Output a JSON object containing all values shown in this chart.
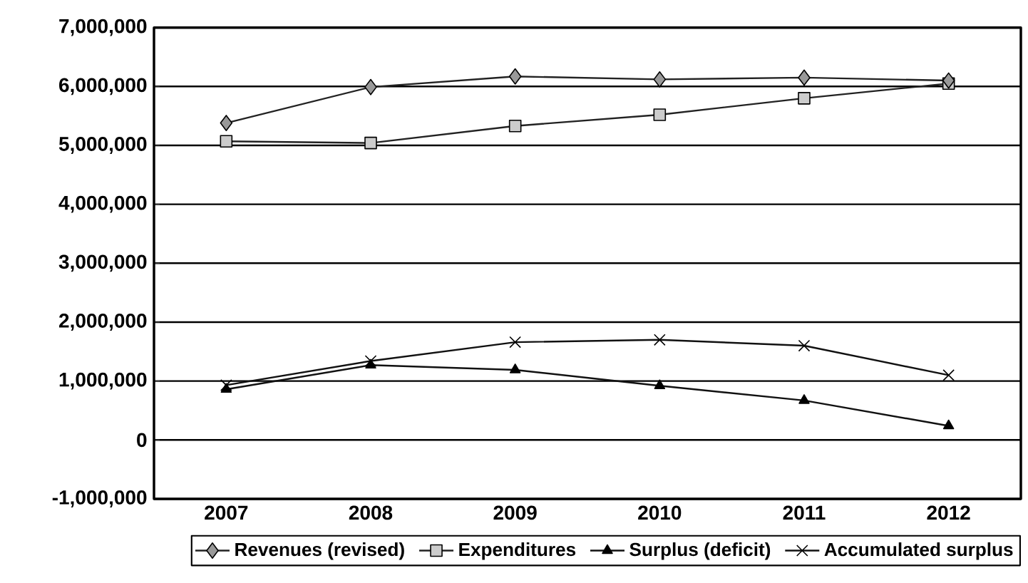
{
  "chart_data": {
    "type": "line",
    "categories": [
      "2007",
      "2008",
      "2009",
      "2010",
      "2011",
      "2012"
    ],
    "series": [
      {
        "name": "Revenues (revised)",
        "color": "#222222",
        "marker": "diamond",
        "values": [
          5380000,
          5990000,
          6170000,
          6120000,
          6150000,
          6100000
        ]
      },
      {
        "name": "Expenditures",
        "color": "#222222",
        "marker": "square",
        "values": [
          5070000,
          5040000,
          5330000,
          5520000,
          5800000,
          6050000
        ]
      },
      {
        "name": "Surplus (deficit)",
        "color": "#111111",
        "marker": "triangle",
        "values": [
          860000,
          1270000,
          1190000,
          920000,
          670000,
          240000
        ]
      },
      {
        "name": "Accumulated surplus",
        "color": "#111111",
        "marker": "cross",
        "values": [
          930000,
          1340000,
          1660000,
          1700000,
          1600000,
          1100000
        ]
      }
    ],
    "ylim": [
      -1000000,
      7000000
    ],
    "yticks": [
      {
        "value": -1000000,
        "label": "-1,000,000"
      },
      {
        "value": 0,
        "label": "0"
      },
      {
        "value": 1000000,
        "label": "1,000,000"
      },
      {
        "value": 2000000,
        "label": "2,000,000"
      },
      {
        "value": 3000000,
        "label": "3,000,000"
      },
      {
        "value": 4000000,
        "label": "4,000,000"
      },
      {
        "value": 5000000,
        "label": "5,000,000"
      },
      {
        "value": 6000000,
        "label": "6,000,000"
      },
      {
        "value": 7000000,
        "label": "7,000,000"
      }
    ],
    "grid": "y",
    "legend": "bottom",
    "line_style": "solid"
  }
}
